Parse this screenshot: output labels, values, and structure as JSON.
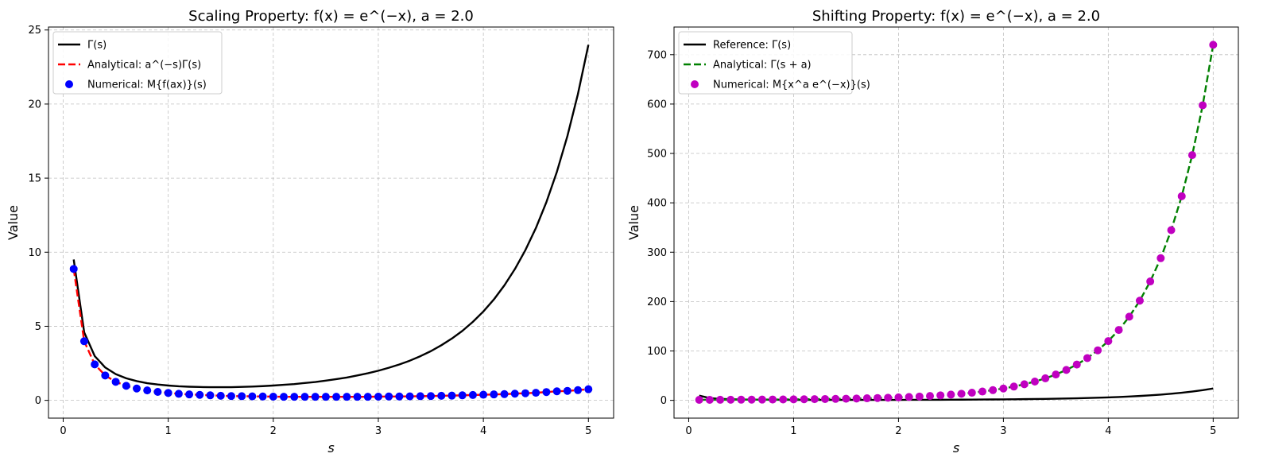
{
  "chart_data": [
    {
      "type": "line",
      "title": "Scaling Property: f(x) = e^(−x), a = 2.0",
      "xlabel": "s",
      "ylabel": "Value",
      "xlim": [
        -0.14,
        5.24
      ],
      "ylim": [
        -1.2,
        25.2
      ],
      "xticks": [
        0,
        1,
        2,
        3,
        4,
        5
      ],
      "yticks": [
        0,
        5,
        10,
        15,
        20,
        25
      ],
      "grid": true,
      "legend_position": "upper-left",
      "series": [
        {
          "name": "Γ(s)",
          "style": "line",
          "color": "#000000",
          "x": [
            0.1,
            0.2,
            0.3,
            0.4,
            0.5,
            0.6,
            0.7,
            0.8,
            0.9,
            1.0,
            1.1,
            1.2,
            1.3,
            1.4,
            1.5,
            1.6,
            1.7,
            1.8,
            1.9,
            2.0,
            2.1,
            2.2,
            2.3,
            2.4,
            2.5,
            2.6,
            2.7,
            2.8,
            2.9,
            3.0,
            3.1,
            3.2,
            3.3,
            3.4,
            3.5,
            3.6,
            3.7,
            3.8,
            3.9,
            4.0,
            4.1,
            4.2,
            4.3,
            4.4,
            4.5,
            4.6,
            4.7,
            4.8,
            4.9,
            5.0
          ],
          "y": [
            9.51,
            4.59,
            2.99,
            2.22,
            1.77,
            1.49,
            1.3,
            1.16,
            1.07,
            1.0,
            0.95,
            0.92,
            0.9,
            0.89,
            0.89,
            0.89,
            0.91,
            0.93,
            0.96,
            1.0,
            1.05,
            1.1,
            1.17,
            1.24,
            1.33,
            1.43,
            1.54,
            1.68,
            1.83,
            2.0,
            2.2,
            2.42,
            2.68,
            2.98,
            3.32,
            3.72,
            4.17,
            4.69,
            5.3,
            6.0,
            6.81,
            7.76,
            8.86,
            10.14,
            11.63,
            13.38,
            15.43,
            17.84,
            20.67,
            24.0
          ]
        },
        {
          "name": "Analytical: a^(−s)Γ(s)",
          "style": "dashed",
          "color": "#ff0000",
          "x": [
            0.1,
            0.2,
            0.3,
            0.4,
            0.5,
            0.6,
            0.7,
            0.8,
            0.9,
            1.0,
            1.1,
            1.2,
            1.3,
            1.4,
            1.5,
            1.6,
            1.7,
            1.8,
            1.9,
            2.0,
            2.1,
            2.2,
            2.3,
            2.4,
            2.5,
            2.6,
            2.7,
            2.8,
            2.9,
            3.0,
            3.1,
            3.2,
            3.3,
            3.4,
            3.5,
            3.6,
            3.7,
            3.8,
            3.9,
            4.0,
            4.1,
            4.2,
            4.3,
            4.4,
            4.5,
            4.6,
            4.7,
            4.8,
            4.9,
            5.0
          ],
          "y": [
            8.87,
            3.99,
            2.43,
            1.68,
            1.25,
            0.98,
            0.8,
            0.67,
            0.57,
            0.5,
            0.44,
            0.4,
            0.37,
            0.34,
            0.31,
            0.29,
            0.28,
            0.27,
            0.26,
            0.25,
            0.24,
            0.24,
            0.24,
            0.24,
            0.24,
            0.24,
            0.24,
            0.24,
            0.24,
            0.25,
            0.26,
            0.26,
            0.27,
            0.28,
            0.29,
            0.31,
            0.32,
            0.34,
            0.36,
            0.38,
            0.4,
            0.42,
            0.45,
            0.48,
            0.51,
            0.56,
            0.61,
            0.64,
            0.69,
            0.75
          ]
        },
        {
          "name": "Numerical: M{f(ax)}(s)",
          "style": "markers",
          "color": "#0000ff",
          "x": [
            0.1,
            0.2,
            0.3,
            0.4,
            0.5,
            0.6,
            0.7,
            0.8,
            0.9,
            1.0,
            1.1,
            1.2,
            1.3,
            1.4,
            1.5,
            1.6,
            1.7,
            1.8,
            1.9,
            2.0,
            2.1,
            2.2,
            2.3,
            2.4,
            2.5,
            2.6,
            2.7,
            2.8,
            2.9,
            3.0,
            3.1,
            3.2,
            3.3,
            3.4,
            3.5,
            3.6,
            3.7,
            3.8,
            3.9,
            4.0,
            4.1,
            4.2,
            4.3,
            4.4,
            4.5,
            4.6,
            4.7,
            4.8,
            4.9,
            5.0
          ],
          "y": [
            8.87,
            3.99,
            2.43,
            1.68,
            1.25,
            0.98,
            0.8,
            0.67,
            0.57,
            0.5,
            0.44,
            0.4,
            0.37,
            0.34,
            0.31,
            0.29,
            0.28,
            0.27,
            0.26,
            0.25,
            0.24,
            0.24,
            0.24,
            0.24,
            0.24,
            0.24,
            0.24,
            0.24,
            0.24,
            0.25,
            0.26,
            0.26,
            0.27,
            0.28,
            0.29,
            0.31,
            0.32,
            0.34,
            0.36,
            0.38,
            0.4,
            0.42,
            0.45,
            0.48,
            0.51,
            0.56,
            0.61,
            0.64,
            0.69,
            0.75
          ]
        }
      ]
    },
    {
      "type": "line",
      "title": "Shifting Property: f(x) = e^(−x), a = 2.0",
      "xlabel": "s",
      "ylabel": "Value",
      "xlim": [
        -0.14,
        5.24
      ],
      "ylim": [
        -36,
        756
      ],
      "xticks": [
        0,
        1,
        2,
        3,
        4,
        5
      ],
      "yticks": [
        0,
        100,
        200,
        300,
        400,
        500,
        600,
        700
      ],
      "grid": true,
      "legend_position": "upper-left",
      "series": [
        {
          "name": "Reference: Γ(s)",
          "style": "line",
          "color": "#000000",
          "x": [
            0.1,
            0.2,
            0.3,
            0.4,
            0.5,
            0.6,
            0.7,
            0.8,
            0.9,
            1.0,
            1.1,
            1.2,
            1.3,
            1.4,
            1.5,
            1.6,
            1.7,
            1.8,
            1.9,
            2.0,
            2.1,
            2.2,
            2.3,
            2.4,
            2.5,
            2.6,
            2.7,
            2.8,
            2.9,
            3.0,
            3.1,
            3.2,
            3.3,
            3.4,
            3.5,
            3.6,
            3.7,
            3.8,
            3.9,
            4.0,
            4.1,
            4.2,
            4.3,
            4.4,
            4.5,
            4.6,
            4.7,
            4.8,
            4.9,
            5.0
          ],
          "y": [
            9.51,
            4.59,
            2.99,
            2.22,
            1.77,
            1.49,
            1.3,
            1.16,
            1.07,
            1.0,
            0.95,
            0.92,
            0.9,
            0.89,
            0.89,
            0.89,
            0.91,
            0.93,
            0.96,
            1.0,
            1.05,
            1.1,
            1.17,
            1.24,
            1.33,
            1.43,
            1.54,
            1.68,
            1.83,
            2.0,
            2.2,
            2.42,
            2.68,
            2.98,
            3.32,
            3.72,
            4.17,
            4.69,
            5.3,
            6.0,
            6.81,
            7.76,
            8.86,
            10.14,
            11.63,
            13.38,
            15.43,
            17.84,
            20.67,
            24.0
          ]
        },
        {
          "name": "Analytical: Γ(s + a)",
          "style": "dashed",
          "color": "#008000",
          "x": [
            0.1,
            0.2,
            0.3,
            0.4,
            0.5,
            0.6,
            0.7,
            0.8,
            0.9,
            1.0,
            1.1,
            1.2,
            1.3,
            1.4,
            1.5,
            1.6,
            1.7,
            1.8,
            1.9,
            2.0,
            2.1,
            2.2,
            2.3,
            2.4,
            2.5,
            2.6,
            2.7,
            2.8,
            2.9,
            3.0,
            3.1,
            3.2,
            3.3,
            3.4,
            3.5,
            3.6,
            3.7,
            3.8,
            3.9,
            4.0,
            4.1,
            4.2,
            4.3,
            4.4,
            4.5,
            4.6,
            4.7,
            4.8,
            4.9,
            5.0
          ],
          "y": [
            1.05,
            1.1,
            1.17,
            1.24,
            1.33,
            1.43,
            1.54,
            1.68,
            1.83,
            2.0,
            2.2,
            2.42,
            2.68,
            2.98,
            3.32,
            3.72,
            4.17,
            4.69,
            5.3,
            6.0,
            6.81,
            7.76,
            8.86,
            10.14,
            11.63,
            13.38,
            15.43,
            17.84,
            20.67,
            24.0,
            27.93,
            32.58,
            38.08,
            44.6,
            52.34,
            61.55,
            72.53,
            85.62,
            101.28,
            120.0,
            142.45,
            169.41,
            201.81,
            240.83,
            287.89,
            344.7,
            413.41,
            496.61,
            597.5,
            720.0
          ]
        },
        {
          "name": "Numerical: M{x^a e^(−x)}(s)",
          "style": "markers",
          "color": "#c000c0",
          "x": [
            0.1,
            0.2,
            0.3,
            0.4,
            0.5,
            0.6,
            0.7,
            0.8,
            0.9,
            1.0,
            1.1,
            1.2,
            1.3,
            1.4,
            1.5,
            1.6,
            1.7,
            1.8,
            1.9,
            2.0,
            2.1,
            2.2,
            2.3,
            2.4,
            2.5,
            2.6,
            2.7,
            2.8,
            2.9,
            3.0,
            3.1,
            3.2,
            3.3,
            3.4,
            3.5,
            3.6,
            3.7,
            3.8,
            3.9,
            4.0,
            4.1,
            4.2,
            4.3,
            4.4,
            4.5,
            4.6,
            4.7,
            4.8,
            4.9,
            5.0
          ],
          "y": [
            1.05,
            1.1,
            1.17,
            1.24,
            1.33,
            1.43,
            1.54,
            1.68,
            1.83,
            2.0,
            2.2,
            2.42,
            2.68,
            2.98,
            3.32,
            3.72,
            4.17,
            4.69,
            5.3,
            6.0,
            6.81,
            7.76,
            8.86,
            10.14,
            11.63,
            13.38,
            15.43,
            17.84,
            20.67,
            24.0,
            27.93,
            32.58,
            38.08,
            44.6,
            52.34,
            61.55,
            72.53,
            85.62,
            101.28,
            120.0,
            142.45,
            169.41,
            201.81,
            240.83,
            287.89,
            344.7,
            413.41,
            496.61,
            597.5,
            720.0
          ]
        }
      ]
    }
  ]
}
